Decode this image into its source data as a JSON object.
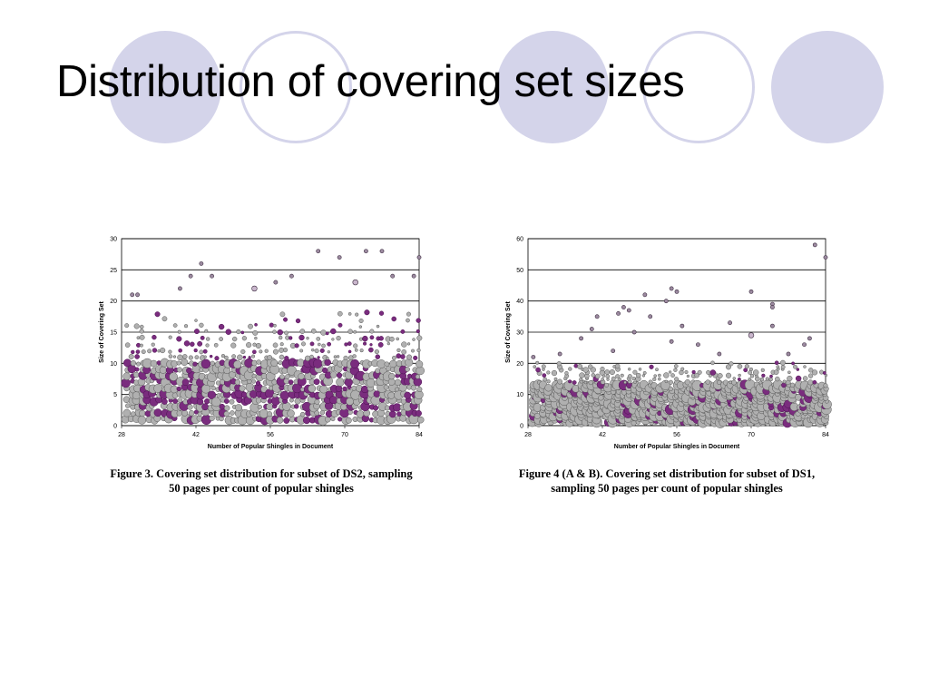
{
  "slide": {
    "title": "Distribution of covering set sizes",
    "accent_color": "#d4d4ea"
  },
  "decor": {
    "circles": [
      {
        "name": "deco-circle-1",
        "style": "filled"
      },
      {
        "name": "deco-circle-2",
        "style": "outline"
      },
      {
        "name": "deco-circle-3",
        "style": "filled"
      },
      {
        "name": "deco-circle-4",
        "style": "outline"
      },
      {
        "name": "deco-circle-5",
        "style": "filled"
      }
    ]
  },
  "figures": [
    {
      "caption_line1": "Figure 3. Covering set distribution for subset of DS2, sampling",
      "caption_line2": "50 pages per count of popular shingles"
    },
    {
      "caption_line1": "Figure 4 (A & B). Covering set distribution for subset of DS1,",
      "caption_line2": "sampling 50 pages per count of popular shingles"
    }
  ],
  "chart_data": [
    {
      "type": "scatter",
      "title": "",
      "xlabel": "Number of Popular Shingles in Document",
      "ylabel": "Size of Covering Set",
      "xlim": [
        28,
        84
      ],
      "ylim": [
        0,
        30
      ],
      "xticks": [
        "28",
        "42",
        "56",
        "70",
        "84"
      ],
      "yticks": [
        "0",
        "5",
        "10",
        "15",
        "20",
        "25",
        "30"
      ],
      "grid": "horizontal",
      "series": [
        {
          "marker_colors": [
            "#b0b0b0",
            "#7a2c7e"
          ],
          "note": "bubble size encodes frequency",
          "points": [
            {
              "x": 43,
              "y": 26,
              "r": 1
            },
            {
              "x": 65,
              "y": 28,
              "r": 1
            },
            {
              "x": 69,
              "y": 27,
              "r": 1
            },
            {
              "x": 74,
              "y": 28,
              "r": 1
            },
            {
              "x": 77,
              "y": 28,
              "r": 1
            },
            {
              "x": 84,
              "y": 27,
              "r": 1
            },
            {
              "x": 41,
              "y": 24,
              "r": 1
            },
            {
              "x": 45,
              "y": 24,
              "r": 1
            },
            {
              "x": 60,
              "y": 24,
              "r": 1
            },
            {
              "x": 79,
              "y": 24,
              "r": 1
            },
            {
              "x": 83,
              "y": 24,
              "r": 1
            },
            {
              "x": 30,
              "y": 21,
              "r": 1
            },
            {
              "x": 31,
              "y": 21,
              "r": 1
            },
            {
              "x": 72,
              "y": 23,
              "r": 2
            },
            {
              "x": 53,
              "y": 22,
              "r": 2
            },
            {
              "x": 39,
              "y": 22,
              "r": 1
            },
            {
              "x": 57,
              "y": 23,
              "r": 1
            }
          ]
        }
      ]
    },
    {
      "type": "scatter",
      "title": "",
      "xlabel": "Number of Popular Shingles in Document",
      "ylabel": "Size of Covering Set",
      "xlim": [
        28,
        84
      ],
      "ylim": [
        0,
        60
      ],
      "xticks": [
        "28",
        "42",
        "56",
        "70",
        "84"
      ],
      "yticks": [
        "0",
        "10",
        "20",
        "30",
        "40",
        "50",
        "60"
      ],
      "grid": "horizontal",
      "series": [
        {
          "marker_colors": [
            "#b0b0b0",
            "#7a2c7e"
          ],
          "note": "bubble size encodes frequency",
          "points": [
            {
              "x": 82,
              "y": 58,
              "r": 1
            },
            {
              "x": 84,
              "y": 54,
              "r": 1
            },
            {
              "x": 55,
              "y": 44,
              "r": 1
            },
            {
              "x": 56,
              "y": 43,
              "r": 1
            },
            {
              "x": 54,
              "y": 40,
              "r": 1
            },
            {
              "x": 70,
              "y": 43,
              "r": 1
            },
            {
              "x": 50,
              "y": 42,
              "r": 1
            },
            {
              "x": 74,
              "y": 39,
              "r": 1
            },
            {
              "x": 74,
              "y": 38,
              "r": 1
            },
            {
              "x": 46,
              "y": 38,
              "r": 1
            },
            {
              "x": 47,
              "y": 37,
              "r": 1
            },
            {
              "x": 45,
              "y": 36,
              "r": 1
            },
            {
              "x": 41,
              "y": 35,
              "r": 1
            },
            {
              "x": 51,
              "y": 35,
              "r": 1
            },
            {
              "x": 40,
              "y": 31,
              "r": 1
            },
            {
              "x": 57,
              "y": 32,
              "r": 1
            },
            {
              "x": 74,
              "y": 32,
              "r": 1
            },
            {
              "x": 70,
              "y": 29,
              "r": 2
            },
            {
              "x": 66,
              "y": 33,
              "r": 1
            },
            {
              "x": 48,
              "y": 30,
              "r": 1
            },
            {
              "x": 38,
              "y": 28,
              "r": 1
            },
            {
              "x": 55,
              "y": 27,
              "r": 1
            },
            {
              "x": 60,
              "y": 26,
              "r": 1
            },
            {
              "x": 80,
              "y": 26,
              "r": 1
            },
            {
              "x": 81,
              "y": 28,
              "r": 1
            },
            {
              "x": 29,
              "y": 22,
              "r": 1
            },
            {
              "x": 34,
              "y": 23,
              "r": 1
            },
            {
              "x": 44,
              "y": 24,
              "r": 1
            },
            {
              "x": 64,
              "y": 23,
              "r": 1
            },
            {
              "x": 77,
              "y": 23,
              "r": 1
            }
          ]
        }
      ]
    }
  ]
}
